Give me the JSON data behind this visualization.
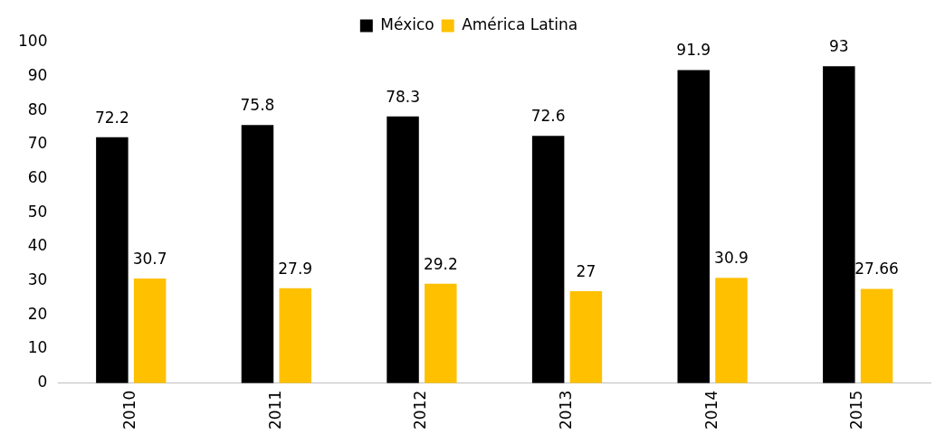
{
  "chart_data": {
    "type": "bar",
    "categories": [
      "2010",
      "2011",
      "2012",
      "2013",
      "2014",
      "2015"
    ],
    "series": [
      {
        "name": "México",
        "color": "#000000",
        "values": [
          72.2,
          75.8,
          78.3,
          72.6,
          91.9,
          93
        ]
      },
      {
        "name": "América Latina",
        "color": "#ffc000",
        "values": [
          30.7,
          27.9,
          29.2,
          27,
          30.9,
          27.66
        ]
      }
    ],
    "ylim": [
      0,
      100
    ],
    "yticks": [
      0,
      10,
      20,
      30,
      40,
      50,
      60,
      70,
      80,
      90,
      100
    ],
    "grid": false,
    "legend": "top",
    "data_labels": true
  }
}
